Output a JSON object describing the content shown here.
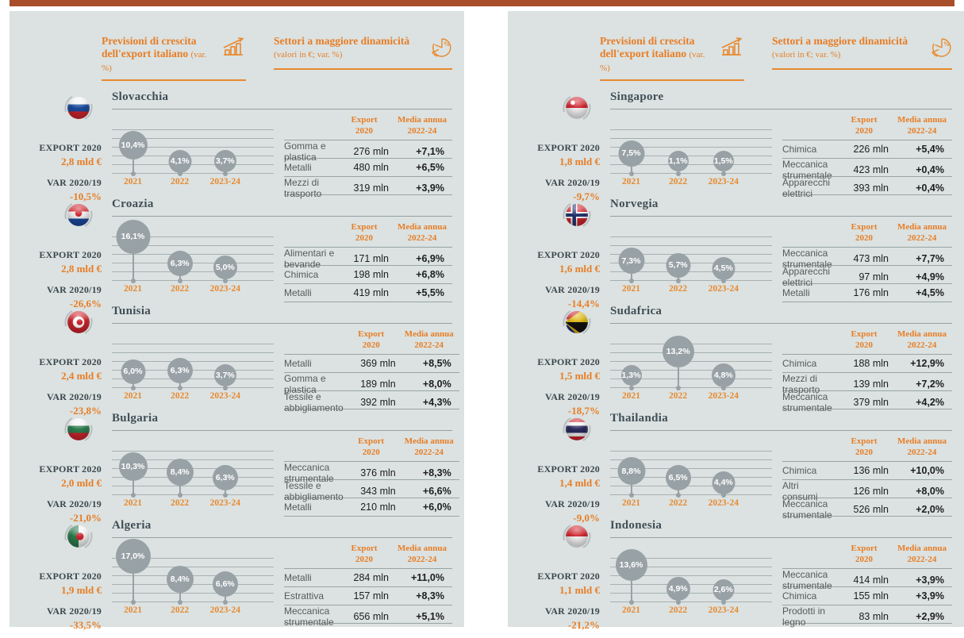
{
  "colors": {
    "accent_orange": "#E87D26",
    "top_bar_red": "#A84E2B",
    "panel_background": "#DBE2E1",
    "bubble_gray": "#98A1A6",
    "heading_dark": "#414E57"
  },
  "shared": {
    "header": {
      "growth_title": "Previsioni di crescita dell'export italiano",
      "growth_sub": "(var. %)",
      "growth_icon": "bar-chart-trend-icon",
      "sectors_title": "Settori a maggiore dinamicità",
      "sectors_sub": "(valori in €; var. %)",
      "sectors_icon": "pie-chart-percent-icon"
    },
    "stats": {
      "export_label": "EXPORT 2020",
      "var_label": "VAR 2020/19"
    },
    "table_headers": {
      "export": "Export\n2020",
      "media": "Media annua\n2022-24"
    }
  },
  "chart_data": [
    {
      "type": "bubble",
      "panel": 0,
      "name": "Slovacchia",
      "flag": "slovakia",
      "export_value": "2,8 mld €",
      "var_value": "-10,5%",
      "categories": [
        "2021",
        "2022",
        "2023-24"
      ],
      "values": [
        10.4,
        4.1,
        3.7
      ],
      "value_labels": [
        "10,4%",
        "4,1%",
        "3,7%"
      ],
      "table": {
        "rows": [
          {
            "sector": "Gomma e plastica",
            "export": "276 mln",
            "media": "+7,1%"
          },
          {
            "sector": "Metalli",
            "export": "480 mln",
            "media": "+6,5%"
          },
          {
            "sector": "Mezzi di trasporto",
            "export": "319 mln",
            "media": "+3,9%"
          }
        ]
      }
    },
    {
      "type": "bubble",
      "panel": 0,
      "name": "Croazia",
      "flag": "croazia",
      "export_value": "2,8 mld €",
      "var_value": "-26,6%",
      "categories": [
        "2021",
        "2022",
        "2023-24"
      ],
      "values": [
        16.1,
        6.3,
        5.0
      ],
      "value_labels": [
        "16,1%",
        "6,3%",
        "5,0%"
      ],
      "table": {
        "rows": [
          {
            "sector": "Alimentari e bevande",
            "export": "171 mln",
            "media": "+6,9%"
          },
          {
            "sector": "Chimica",
            "export": "198 mln",
            "media": "+6,8%"
          },
          {
            "sector": "Metalli",
            "export": "419 mln",
            "media": "+5,5%"
          }
        ]
      }
    },
    {
      "type": "bubble",
      "panel": 0,
      "name": "Tunisia",
      "flag": "tunisia",
      "export_value": "2,4 mld €",
      "var_value": "-23,8%",
      "categories": [
        "2021",
        "2022",
        "2023-24"
      ],
      "values": [
        6.0,
        6.3,
        3.7
      ],
      "value_labels": [
        "6,0%",
        "6,3%",
        "3,7%"
      ],
      "table": {
        "rows": [
          {
            "sector": "Metalli",
            "export": "369 mln",
            "media": "+8,5%"
          },
          {
            "sector": "Gomma e plastica",
            "export": "189 mln",
            "media": "+8,0%"
          },
          {
            "sector": "Tessile e abbigliamento",
            "export": "392 mln",
            "media": "+4,3%"
          }
        ]
      }
    },
    {
      "type": "bubble",
      "panel": 0,
      "name": "Bulgaria",
      "flag": "bulgaria",
      "export_value": "2,0 mld €",
      "var_value": "-21,0%",
      "categories": [
        "2021",
        "2022",
        "2023-24"
      ],
      "values": [
        10.3,
        8.4,
        6.3
      ],
      "value_labels": [
        "10,3%",
        "8,4%",
        "6,3%"
      ],
      "table": {
        "rows": [
          {
            "sector": "Meccanica strumentale",
            "export": "376 mln",
            "media": "+8,3%"
          },
          {
            "sector": "Tessile e abbigliamento",
            "export": "343 mln",
            "media": "+6,6%"
          },
          {
            "sector": "Metalli",
            "export": "210 mln",
            "media": "+6,0%"
          }
        ]
      }
    },
    {
      "type": "bubble",
      "panel": 0,
      "name": "Algeria",
      "flag": "algeria",
      "export_value": "1,9 mld €",
      "var_value": "-33,5%",
      "categories": [
        "2021",
        "2022",
        "2023-24"
      ],
      "values": [
        17.0,
        8.4,
        6.6
      ],
      "value_labels": [
        "17,0%",
        "8,4%",
        "6,6%"
      ],
      "table": {
        "rows": [
          {
            "sector": "Metalli",
            "export": "284 mln",
            "media": "+11,0%"
          },
          {
            "sector": "Estrattiva",
            "export": "157 mln",
            "media": "+8,3%"
          },
          {
            "sector": "Meccanica strumentale",
            "export": "656 mln",
            "media": "+5,1%"
          }
        ]
      }
    },
    {
      "type": "bubble",
      "panel": 1,
      "name": "Singapore",
      "flag": "singapore",
      "export_value": "1,8 mld €",
      "var_value": "-9,7%",
      "categories": [
        "2021",
        "2022",
        "2023-24"
      ],
      "values": [
        7.5,
        1.1,
        1.5
      ],
      "value_labels": [
        "7,5%",
        "1,1%",
        "1,5%"
      ],
      "table": {
        "rows": [
          {
            "sector": "Chimica",
            "export": "226 mln",
            "media": "+5,4%"
          },
          {
            "sector": "Meccanica strumentale",
            "export": "423 mln",
            "media": "+0,4%"
          },
          {
            "sector": "Apparecchi elettrici",
            "export": "393 mln",
            "media": "+0,4%"
          }
        ]
      }
    },
    {
      "type": "bubble",
      "panel": 1,
      "name": "Norvegia",
      "flag": "norvegia",
      "export_value": "1,6 mld €",
      "var_value": "-14,4%",
      "categories": [
        "2021",
        "2022",
        "2023-24"
      ],
      "values": [
        7.3,
        5.7,
        4.5
      ],
      "value_labels": [
        "7,3%",
        "5,7%",
        "4,5%"
      ],
      "table": {
        "rows": [
          {
            "sector": "Meccanica strumentale",
            "export": "473 mln",
            "media": "+7,7%"
          },
          {
            "sector": "Apparecchi elettrici",
            "export": "97 mln",
            "media": "+4,9%"
          },
          {
            "sector": "Metalli",
            "export": "176 mln",
            "media": "+4,5%"
          }
        ]
      }
    },
    {
      "type": "bubble",
      "panel": 1,
      "name": "Sudafrica",
      "flag": "sudafrica",
      "export_value": "1,5 mld €",
      "var_value": "-18,7%",
      "categories": [
        "2021",
        "2022",
        "2023-24"
      ],
      "values": [
        1.3,
        13.2,
        4.8
      ],
      "value_labels": [
        "1,3%",
        "13,2%",
        "4,8%"
      ],
      "table": {
        "rows": [
          {
            "sector": "Chimica",
            "export": "188 mln",
            "media": "+12,9%"
          },
          {
            "sector": "Mezzi di trasporto",
            "export": "139 mln",
            "media": "+7,2%"
          },
          {
            "sector": "Meccanica strumentale",
            "export": "379 mln",
            "media": "+4,2%"
          }
        ]
      }
    },
    {
      "type": "bubble",
      "panel": 1,
      "name": "Thailandia",
      "flag": "thailandia",
      "export_value": "1,4 mld €",
      "var_value": "-9,0%",
      "categories": [
        "2021",
        "2022",
        "2023-24"
      ],
      "values": [
        8.8,
        6.5,
        4.4
      ],
      "value_labels": [
        "8,8%",
        "6,5%",
        "4,4%"
      ],
      "table": {
        "rows": [
          {
            "sector": "Chimica",
            "export": "136 mln",
            "media": "+10,0%"
          },
          {
            "sector": "Altri consumi",
            "export": "126 mln",
            "media": "+8,0%"
          },
          {
            "sector": "Meccanica strumentale",
            "export": "526 mln",
            "media": "+2,0%"
          }
        ]
      }
    },
    {
      "type": "bubble",
      "panel": 1,
      "name": "Indonesia",
      "flag": "indonesia",
      "export_value": "1,1 mld €",
      "var_value": "-21,2%",
      "categories": [
        "2021",
        "2022",
        "2023-24"
      ],
      "values": [
        13.6,
        4.9,
        2.6
      ],
      "value_labels": [
        "13,6%",
        "4,9%",
        "2,6%"
      ],
      "table": {
        "rows": [
          {
            "sector": "Meccanica strumentale",
            "export": "414 mln",
            "media": "+3,9%"
          },
          {
            "sector": "Chimica",
            "export": "155 mln",
            "media": "+3,9%"
          },
          {
            "sector": "Prodotti in legno",
            "export": "83 mln",
            "media": "+2,9%"
          }
        ]
      }
    }
  ]
}
